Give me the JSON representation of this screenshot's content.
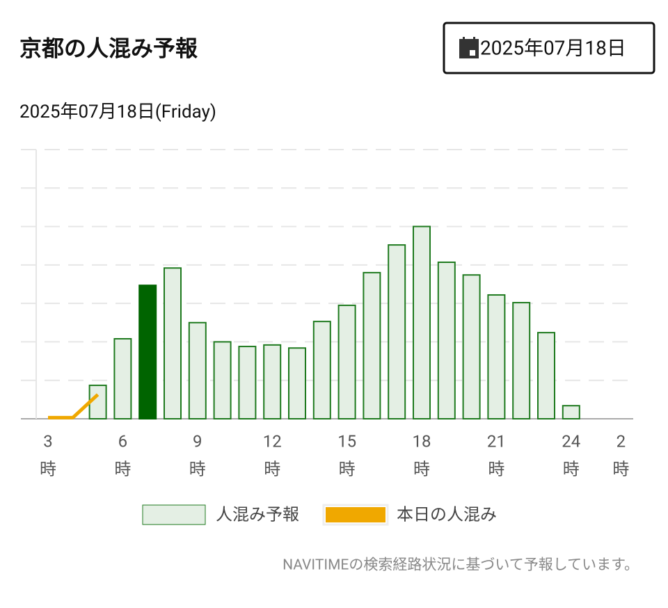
{
  "header": {
    "title": "京都の人混み予報",
    "date_button": "2025年07月18日"
  },
  "chart_data": {
    "type": "bar",
    "subtitle": "2025年07月18日(Friday)",
    "categories": [
      "3",
      null,
      null,
      "6",
      null,
      null,
      "9",
      null,
      null,
      "12",
      null,
      null,
      "15",
      null,
      null,
      "18",
      null,
      null,
      "21",
      null,
      null,
      "24",
      null,
      "2"
    ],
    "x_unit": "時",
    "series": [
      {
        "name": "人混み予報",
        "type": "bar",
        "color": "#e4efe4",
        "stroke": "#1e7a1e",
        "values": [
          null,
          null,
          0.87,
          2.08,
          3.47,
          3.92,
          2.5,
          2.0,
          1.88,
          1.92,
          1.84,
          2.53,
          2.95,
          3.8,
          4.52,
          5.0,
          4.07,
          3.74,
          3.22,
          3.02,
          2.24,
          0.34,
          null,
          null
        ]
      },
      {
        "name": "本日の人混み",
        "type": "line",
        "color": "#f0a800",
        "values": [
          0.03,
          0.03,
          0.63,
          null,
          null,
          null,
          null,
          null,
          null,
          null,
          null,
          null,
          null,
          null,
          null,
          null,
          null,
          null,
          null,
          null,
          null,
          null,
          null,
          null
        ]
      }
    ],
    "highlight_index": 4,
    "highlight_color": "#006400",
    "ylim": [
      0,
      7
    ],
    "yticks": [
      0,
      1,
      2,
      3,
      4,
      5,
      6,
      7
    ],
    "grid": true
  },
  "footnote": "NAVITIMEの検索経路状況に基づいて予報しています。"
}
